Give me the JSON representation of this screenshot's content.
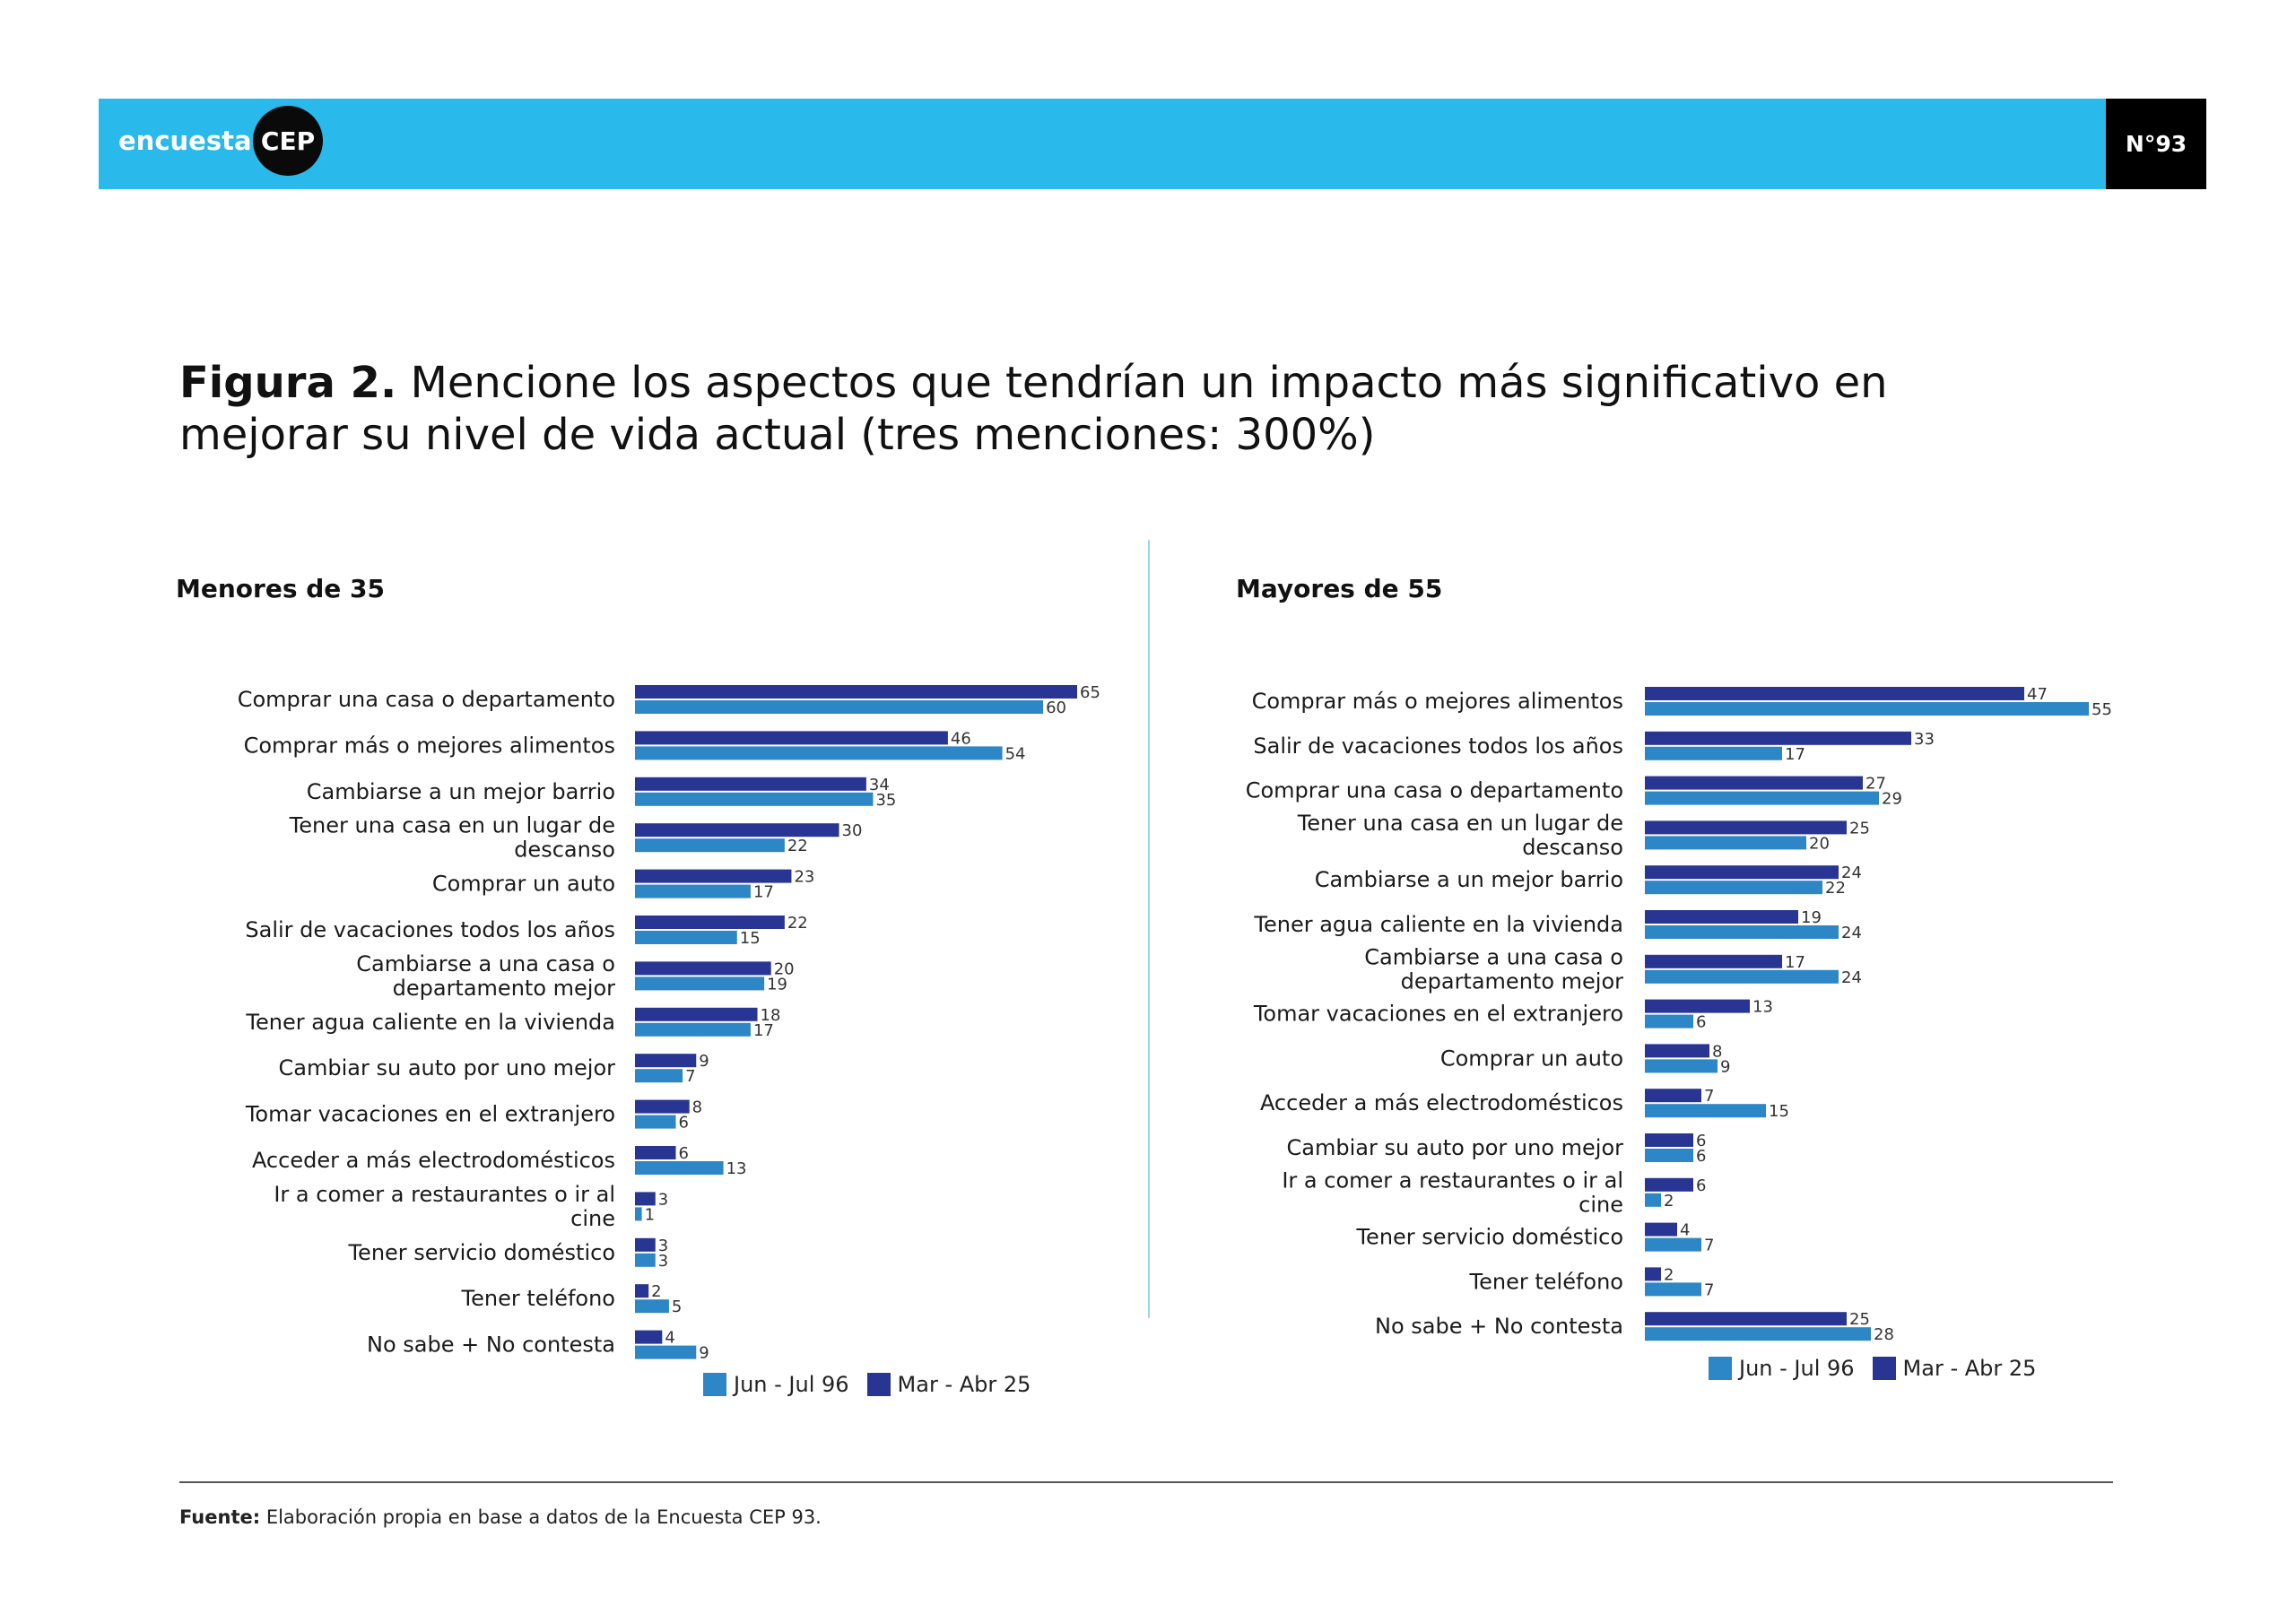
{
  "header": {
    "brand_text": "encuesta",
    "brand_badge": "CEP",
    "issue": "N°93",
    "colors": {
      "band": "#29b9ea",
      "badge": "#0a0a0a"
    }
  },
  "figure": {
    "label": "Figura 2.",
    "title": "Mencione los aspectos que tendrían un impacto más significativo en mejorar su nivel de vida actual (tres menciones: 300%)"
  },
  "legend": {
    "jun96": "Jun - Jul 96",
    "mar25": "Mar - Abr 25"
  },
  "colors": {
    "jun96": "#2d86c5",
    "mar25": "#283593"
  },
  "footer": {
    "label": "Fuente:",
    "text": "Elaboración propia en base a datos de la Encuesta CEP 93."
  },
  "chart_data": [
    {
      "type": "bar",
      "orientation": "horizontal",
      "title": "Menores de 35",
      "categories": [
        "Comprar una casa o departamento",
        "Comprar más o mejores alimentos",
        "Cambiarse a un mejor barrio",
        "Tener una casa en un lugar de descanso",
        "Comprar un auto",
        "Salir de vacaciones todos los años",
        "Cambiarse a una casa o departamento mejor",
        "Tener agua caliente en la vivienda",
        "Cambiar su auto por uno mejor",
        "Tomar vacaciones en el extranjero",
        "Acceder a más electrodomésticos",
        "Ir a comer a restaurantes o ir al cine",
        "Tener servicio doméstico",
        "Tener teléfono",
        "No sabe + No contesta"
      ],
      "series": [
        {
          "name": "Mar - Abr 25",
          "values": [
            65,
            46,
            34,
            30,
            23,
            22,
            20,
            18,
            9,
            8,
            6,
            3,
            3,
            2,
            4
          ]
        },
        {
          "name": "Jun - Jul 96",
          "values": [
            60,
            54,
            35,
            22,
            17,
            15,
            19,
            17,
            7,
            6,
            13,
            1,
            3,
            5,
            9
          ]
        }
      ],
      "xlim": [
        0,
        65
      ],
      "grid": false,
      "legend": "bottom"
    },
    {
      "type": "bar",
      "orientation": "horizontal",
      "title": "Mayores de 55",
      "categories": [
        "Comprar más o mejores alimentos",
        "Salir de vacaciones todos los años",
        "Comprar una casa o departamento",
        "Tener una casa en un lugar de descanso",
        "Cambiarse a un mejor barrio",
        "Tener agua caliente en la vivienda",
        "Cambiarse a una casa o departamento mejor",
        "Tomar vacaciones en el extranjero",
        "Comprar un auto",
        "Acceder a más electrodomésticos",
        "Cambiar su auto por uno mejor",
        "Ir a comer a restaurantes o ir al cine",
        "Tener servicio doméstico",
        "Tener teléfono",
        "No sabe + No contesta"
      ],
      "series": [
        {
          "name": "Mar - Abr 25",
          "values": [
            47,
            33,
            27,
            25,
            24,
            19,
            17,
            13,
            8,
            7,
            6,
            6,
            4,
            2,
            25
          ]
        },
        {
          "name": "Jun - Jul 96",
          "values": [
            55,
            17,
            29,
            20,
            22,
            24,
            24,
            6,
            9,
            15,
            6,
            2,
            7,
            7,
            28
          ]
        }
      ],
      "xlim": [
        0,
        55
      ],
      "grid": false,
      "legend": "bottom"
    }
  ]
}
